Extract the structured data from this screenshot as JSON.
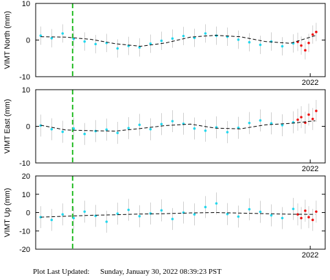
{
  "chart_data": [
    {
      "type": "scatter",
      "ylabel": "VIMT North (mm)",
      "xlim": [
        2016.5,
        2022.3
      ],
      "xticks": [
        2022
      ],
      "ylim": [
        -10,
        10
      ],
      "yticks": [
        -10,
        0,
        10
      ],
      "event_x": 2017.24,
      "event_color": "#22bb22",
      "error": 2.5,
      "series": [
        {
          "color": "#22d8ee",
          "x": [
            2016.6,
            2016.82,
            2017.04,
            2017.26,
            2017.48,
            2017.7,
            2017.92,
            2018.14,
            2018.36,
            2018.58,
            2018.8,
            2019.02,
            2019.24,
            2019.46,
            2019.68,
            2019.9,
            2020.12,
            2020.34,
            2020.56,
            2020.78,
            2021.0,
            2021.22,
            2021.44,
            2021.66
          ],
          "values": [
            1.2,
            0.5,
            1.8,
            0.3,
            -0.4,
            -1.1,
            -0.8,
            -2.3,
            -1.6,
            -2.0,
            -1.0,
            -0.2,
            0.4,
            1.1,
            0.6,
            1.8,
            1.2,
            0.9,
            0.1,
            -0.6,
            -1.3,
            -0.4,
            -1.7,
            -0.9
          ]
        },
        {
          "color": "#ee1111",
          "x": [
            2021.75,
            2021.82,
            2021.9,
            2021.97,
            2022.05,
            2022.12
          ],
          "values": [
            -0.5,
            -1.5,
            -2.8,
            -0.8,
            1.5,
            2.2
          ]
        }
      ],
      "trend": {
        "color": "#000000",
        "x": [
          2016.6,
          2017.1,
          2017.6,
          2018.1,
          2018.6,
          2019.1,
          2019.6,
          2020.1,
          2020.6,
          2021.1,
          2021.6,
          2022.1
        ],
        "values": [
          0.9,
          0.8,
          0.2,
          -1.0,
          -1.7,
          -0.8,
          0.8,
          1.3,
          0.9,
          -0.4,
          -0.9,
          1.2
        ]
      }
    },
    {
      "type": "scatter",
      "ylabel": "VIMT East (mm)",
      "xlim": [
        2016.5,
        2022.3
      ],
      "xticks": [
        2022
      ],
      "ylim": [
        -10,
        10
      ],
      "yticks": [
        -10,
        0,
        10
      ],
      "event_x": 2017.24,
      "event_color": "#22bb22",
      "error": 3,
      "series": [
        {
          "color": "#22d8ee",
          "x": [
            2016.6,
            2016.82,
            2017.04,
            2017.26,
            2017.48,
            2017.7,
            2017.92,
            2018.14,
            2018.36,
            2018.58,
            2018.8,
            2019.02,
            2019.24,
            2019.46,
            2019.68,
            2019.9,
            2020.12,
            2020.34,
            2020.56,
            2020.78,
            2021.0,
            2021.22,
            2021.44,
            2021.66
          ],
          "values": [
            0.2,
            -0.8,
            -1.5,
            -0.6,
            -2.1,
            -1.3,
            -0.9,
            -1.8,
            -0.5,
            0.4,
            -0.8,
            0.6,
            1.4,
            0.7,
            -0.6,
            -1.2,
            -0.3,
            -1.6,
            -0.4,
            0.9,
            1.6,
            0.8,
            0.3,
            1.1
          ]
        },
        {
          "color": "#ee1111",
          "x": [
            2021.75,
            2021.82,
            2021.9,
            2021.97,
            2022.05,
            2022.12
          ],
          "values": [
            1.8,
            2.5,
            1.0,
            3.2,
            2.0,
            4.2
          ]
        }
      ],
      "trend": {
        "color": "#000000",
        "x": [
          2016.6,
          2017.1,
          2017.6,
          2018.1,
          2018.6,
          2019.1,
          2019.6,
          2020.1,
          2020.6,
          2021.1,
          2021.6,
          2022.1
        ],
        "values": [
          0.3,
          -1.0,
          -1.2,
          -1.3,
          -0.6,
          0.2,
          0.6,
          -0.5,
          -0.7,
          0.4,
          0.8,
          1.5
        ]
      }
    },
    {
      "type": "scatter",
      "ylabel": "VIMT Up (mm)",
      "xlim": [
        2016.5,
        2022.3
      ],
      "xticks": [
        2022
      ],
      "ylim": [
        -20,
        20
      ],
      "yticks": [
        -20,
        -10,
        0,
        10,
        20
      ],
      "event_x": 2017.24,
      "event_color": "#22bb22",
      "error": 6,
      "series": [
        {
          "color": "#22d8ee",
          "x": [
            2016.6,
            2016.82,
            2017.04,
            2017.26,
            2017.48,
            2017.7,
            2017.92,
            2018.14,
            2018.36,
            2018.58,
            2018.8,
            2019.02,
            2019.24,
            2019.46,
            2019.68,
            2019.9,
            2020.12,
            2020.34,
            2020.56,
            2020.78,
            2021.0,
            2021.22,
            2021.44,
            2021.66
          ],
          "values": [
            -2.5,
            -4,
            -1,
            -3,
            0.5,
            -1.8,
            -5,
            -0.6,
            1.5,
            -2,
            -0.5,
            1.2,
            -3.5,
            0,
            -1,
            3,
            5,
            -0.8,
            -2.2,
            1.8,
            0.4,
            -1.5,
            -3,
            2
          ]
        },
        {
          "color": "#ee1111",
          "x": [
            2021.75,
            2021.82,
            2021.9,
            2021.97,
            2022.05,
            2022.12
          ],
          "values": [
            -1,
            -3,
            1,
            -2.5,
            -4,
            0.5
          ]
        }
      ],
      "trend": {
        "color": "#000000",
        "x": [
          2016.6,
          2017.1,
          2017.6,
          2018.1,
          2018.6,
          2019.1,
          2019.6,
          2020.1,
          2020.6,
          2021.1,
          2021.6,
          2022.1
        ],
        "values": [
          -2.5,
          -2,
          -1.5,
          -1.2,
          -0.8,
          -0.6,
          -0.2,
          0,
          -0.3,
          -0.6,
          -0.9,
          -1
        ]
      }
    }
  ],
  "footer": {
    "label": "Plot Last Updated:",
    "timestamp": "Sunday, January 30, 2022 08:39:23 PST"
  }
}
